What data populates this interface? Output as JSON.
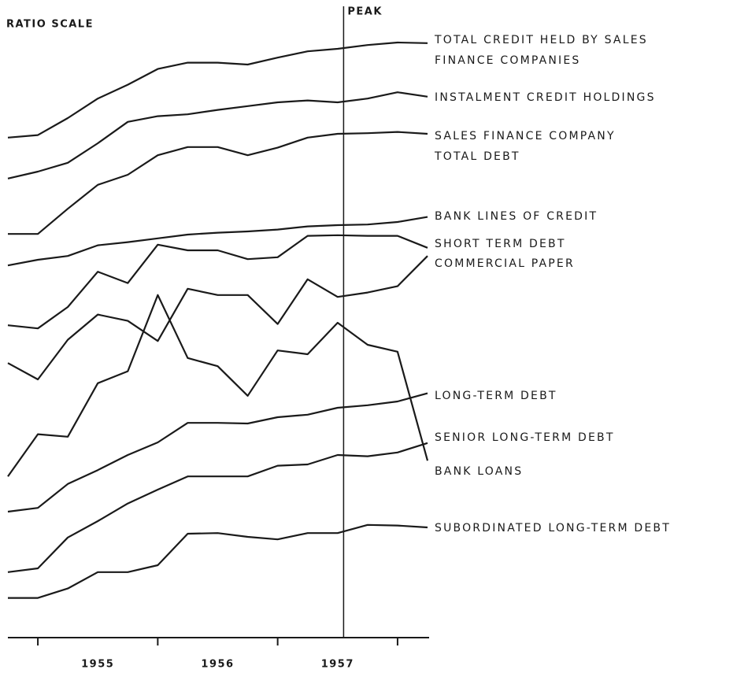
{
  "chart_data": {
    "type": "line",
    "scale_note": "RATIO SCALE",
    "color": "#1a1a1a",
    "x": [
      1954.75,
      1955,
      1955.25,
      1955.5,
      1955.75,
      1956,
      1956.25,
      1956.5,
      1956.75,
      1957,
      1957.25,
      1957.5,
      1957.75,
      1958,
      1958.25
    ],
    "xlim": [
      1954.75,
      1958.25
    ],
    "xticks": [
      {
        "value": 1955.5,
        "label": "1955"
      },
      {
        "value": 1956.5,
        "label": "1956"
      },
      {
        "value": 1957.5,
        "label": "1957"
      }
    ],
    "year_boundaries": [
      1955,
      1956,
      1957,
      1958
    ],
    "ylim": [
      0,
      100
    ],
    "peak": {
      "x": 1957.55,
      "label": "PEAK"
    },
    "series": [
      {
        "name": "TOTAL CREDIT HELD BY SALES\nFINANCE COMPANIES",
        "values": [
          81.9,
          82.3,
          85,
          88.1,
          90.3,
          92.8,
          93.8,
          93.8,
          93.5,
          94.6,
          95.6,
          96,
          96.6,
          97,
          96.9
        ]
      },
      {
        "name": "INSTALMENT CREDIT HOLDINGS",
        "values": [
          75.4,
          76.5,
          77.9,
          81,
          84.4,
          85.3,
          85.6,
          86.3,
          86.9,
          87.5,
          87.8,
          87.5,
          88.1,
          89.1,
          88.4
        ]
      },
      {
        "name": "SALES FINANCE COMPANY\nTOTAL DEBT",
        "values": [
          66.6,
          66.6,
          70.6,
          74.4,
          76,
          79.1,
          80.4,
          80.4,
          79.1,
          80.3,
          81.9,
          82.5,
          82.6,
          82.8,
          82.5
        ]
      },
      {
        "name": "BANK LINES OF CREDIT",
        "values": [
          61.6,
          62.5,
          63.1,
          64.8,
          65.3,
          65.9,
          66.5,
          66.8,
          67,
          67.3,
          67.8,
          68,
          68.1,
          68.5,
          69.3
        ]
      },
      {
        "name": "SHORT TERM DEBT",
        "values": [
          52.1,
          51.6,
          55,
          60.6,
          58.8,
          64.9,
          64,
          64,
          62.6,
          62.9,
          66.3,
          66.4,
          66.3,
          66.3,
          64.4
        ]
      },
      {
        "name": "COMMERCIAL PAPER",
        "values": [
          46.1,
          43.5,
          49.8,
          53.8,
          52.8,
          49.6,
          57.9,
          56.9,
          56.9,
          52.3,
          59.4,
          56.6,
          57.3,
          58.3,
          63.1
        ]
      },
      {
        "name": "LONG-TERM DEBT",
        "values": [
          22.5,
          23.1,
          26.9,
          29.1,
          31.5,
          33.5,
          36.6,
          36.6,
          36.5,
          37.5,
          37.9,
          39,
          39.4,
          40,
          41.3
        ]
      },
      {
        "name": "SENIOR LONG-TERM DEBT",
        "values": [
          12.9,
          13.5,
          18.4,
          21,
          23.8,
          26,
          28.1,
          28.1,
          28.1,
          29.8,
          30,
          31.5,
          31.3,
          31.9,
          33.4
        ]
      },
      {
        "name": "BANK LOANS",
        "values": [
          28.1,
          34.8,
          34.4,
          42.9,
          44.8,
          56.9,
          46.9,
          45.6,
          40.9,
          48.1,
          47.5,
          52.5,
          49,
          47.9,
          30.6
        ]
      },
      {
        "name": "SUBORDINATED LONG-TERM DEBT",
        "values": [
          8.8,
          8.8,
          10.3,
          12.9,
          12.9,
          14,
          19,
          19.1,
          18.5,
          18.1,
          19.1,
          19.1,
          20.4,
          20.3,
          20
        ]
      }
    ]
  }
}
